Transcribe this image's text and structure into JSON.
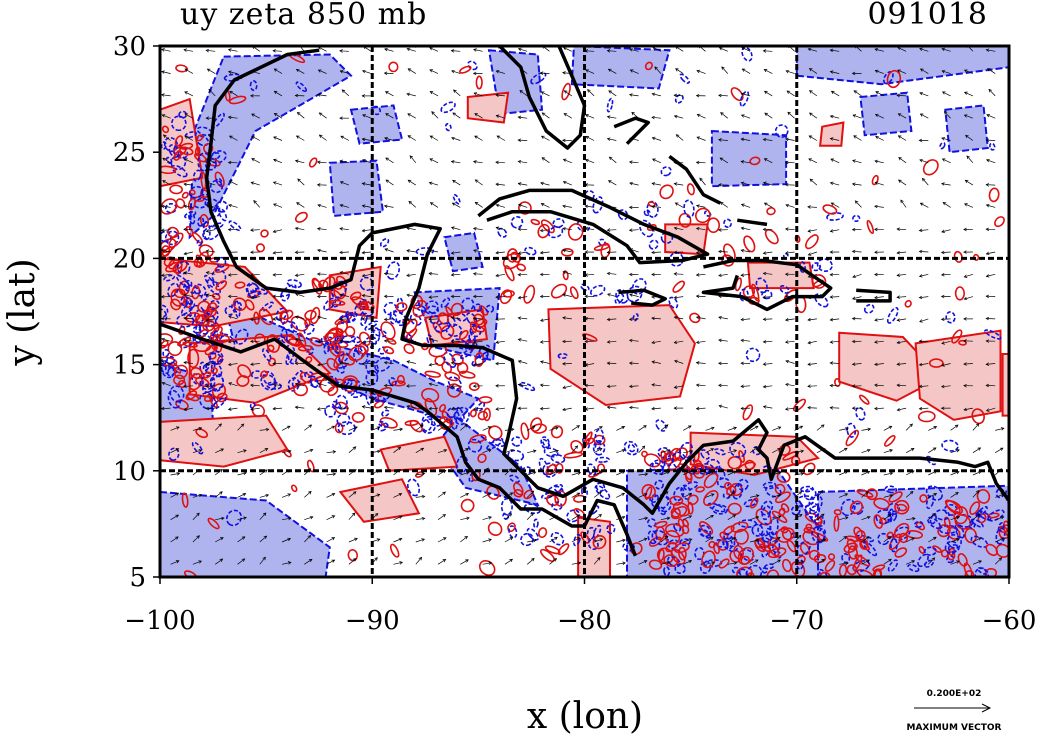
{
  "title_left": "uy zeta 850 mb",
  "title_right": "091018",
  "chart_data": {
    "type": "contour-map",
    "xlabel": "x (lon)",
    "ylabel": "y (lat)",
    "xlim": [
      -100,
      -60
    ],
    "ylim": [
      5,
      30
    ],
    "xticks": [
      -100,
      -90,
      -80,
      -70,
      -60
    ],
    "yticks": [
      5,
      10,
      15,
      20,
      25,
      30
    ],
    "xtick_labels": [
      "−100",
      "−90",
      "−80",
      "−70",
      "−60"
    ],
    "ytick_labels": [
      "5",
      "10",
      "15",
      "20",
      "25",
      "30"
    ],
    "grid": true,
    "gridlines_x": [
      -90,
      -80,
      -70
    ],
    "gridlines_y": [
      10,
      20
    ],
    "colors": {
      "positive_fill": "#f5c6c6",
      "positive_line": "#e01010",
      "negative_fill": "#b0b4ee",
      "negative_line": "#1010e0",
      "coast": "#000000"
    },
    "vector_legend": {
      "value": "0.200E+02",
      "label": "MAXIMUM VECTOR"
    }
  }
}
